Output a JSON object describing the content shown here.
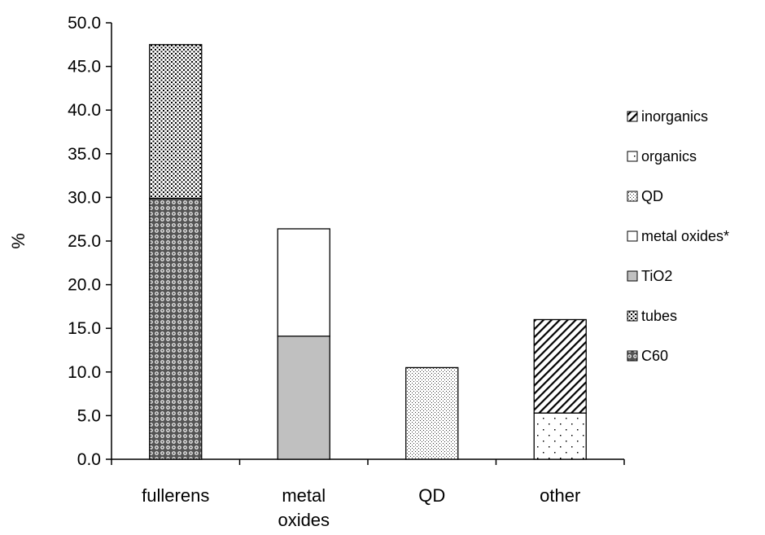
{
  "chart_data": {
    "type": "bar",
    "stacked": true,
    "title": "",
    "xlabel": "",
    "ylabel": "%",
    "ylim": [
      0,
      50
    ],
    "yticks": [
      "0.0",
      "5.0",
      "10.0",
      "15.0",
      "20.0",
      "25.0",
      "30.0",
      "35.0",
      "40.0",
      "45.0",
      "50.0"
    ],
    "categories": [
      "fullerens",
      "metal oxides",
      "QD",
      "other"
    ],
    "category_lines": [
      [
        "fullerens"
      ],
      [
        "metal",
        "oxides"
      ],
      [
        "QD"
      ],
      [
        "other"
      ]
    ],
    "grid": false,
    "legend_position": "right",
    "series": [
      {
        "name": "C60",
        "pattern": "circles",
        "values": [
          29.9,
          0,
          0,
          0
        ]
      },
      {
        "name": "tubes",
        "pattern": "dense-dots",
        "values": [
          17.6,
          0,
          0,
          0
        ]
      },
      {
        "name": "TiO2",
        "pattern": "gray",
        "color": "#c0c0c0",
        "values": [
          0,
          14.1,
          0,
          0
        ]
      },
      {
        "name": "metal oxides*",
        "pattern": "white",
        "values": [
          0,
          12.3,
          0,
          0
        ]
      },
      {
        "name": "QD",
        "pattern": "fine-dots",
        "values": [
          0,
          0,
          10.5,
          0
        ]
      },
      {
        "name": "organics",
        "pattern": "sparse-dots",
        "values": [
          0,
          0,
          0,
          5.3
        ]
      },
      {
        "name": "inorganics",
        "pattern": "diagonal-hatch",
        "values": [
          0,
          0,
          0,
          10.7
        ]
      }
    ],
    "legend_order": [
      "inorganics",
      "organics",
      "QD",
      "metal oxides*",
      "TiO2",
      "tubes",
      "C60"
    ]
  }
}
